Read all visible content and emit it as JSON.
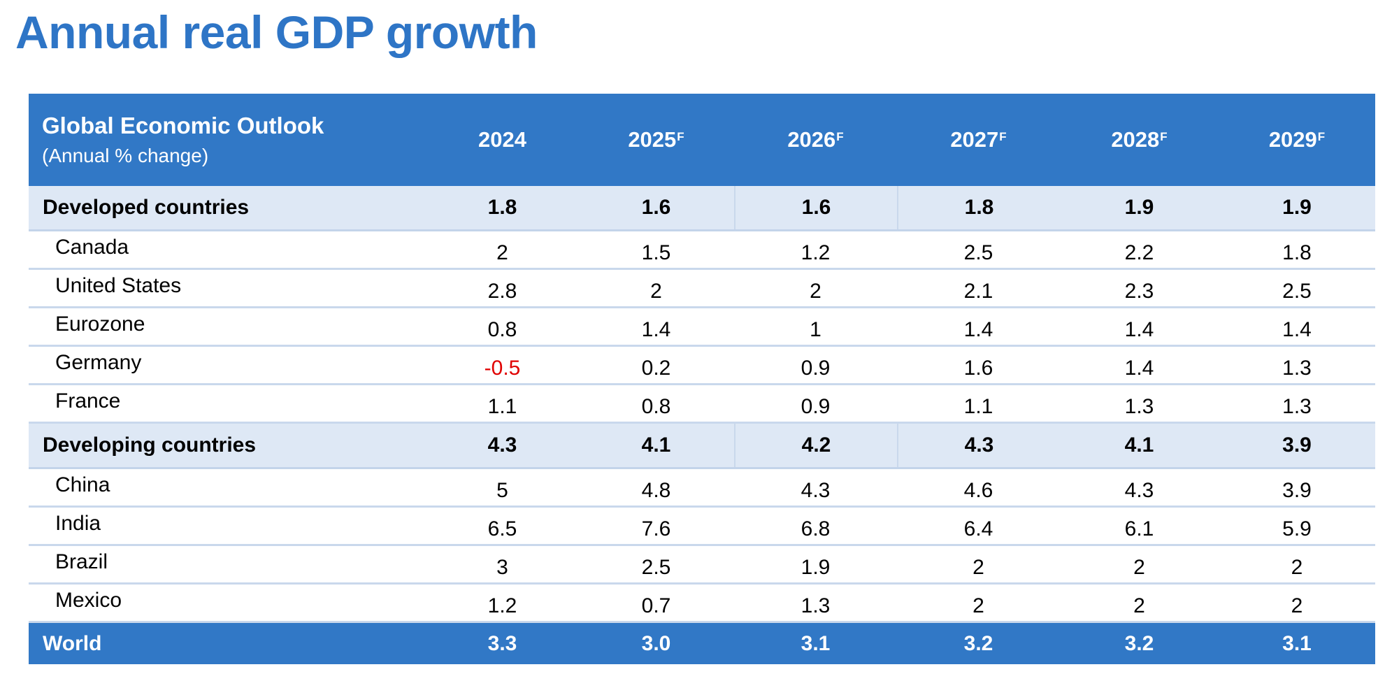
{
  "title": "Annual real GDP growth",
  "table": {
    "header": {
      "title": "Global Economic Outlook",
      "subtitle": "(Annual % change)",
      "years": [
        {
          "year": "2024",
          "mark": ""
        },
        {
          "year": "2025",
          "mark": "F"
        },
        {
          "year": "2026",
          "mark": "F"
        },
        {
          "year": "2027",
          "mark": "F"
        },
        {
          "year": "2028",
          "mark": "F"
        },
        {
          "year": "2029",
          "mark": "F"
        }
      ]
    },
    "rows": [
      {
        "type": "cat",
        "label": "Developed countries",
        "values": [
          "1.8",
          "1.6",
          "1.6",
          "1.8",
          "1.9",
          "1.9"
        ]
      },
      {
        "type": "sub",
        "label": "Canada",
        "values": [
          "2",
          "1.5",
          "1.2",
          "2.5",
          "2.2",
          "1.8"
        ]
      },
      {
        "type": "sub",
        "label": "United States",
        "values": [
          "2.8",
          "2",
          "2",
          "2.1",
          "2.3",
          "2.5"
        ]
      },
      {
        "type": "sub",
        "label": "Eurozone",
        "values": [
          "0.8",
          "1.4",
          "1",
          "1.4",
          "1.4",
          "1.4"
        ]
      },
      {
        "type": "sub",
        "label": "Germany",
        "values": [
          "-0.5",
          "0.2",
          "0.9",
          "1.6",
          "1.4",
          "1.3"
        ]
      },
      {
        "type": "sub",
        "label": "France",
        "values": [
          "1.1",
          "0.8",
          "0.9",
          "1.1",
          "1.3",
          "1.3"
        ]
      },
      {
        "type": "cat",
        "label": "Developing countries",
        "values": [
          "4.3",
          "4.1",
          "4.2",
          "4.3",
          "4.1",
          "3.9"
        ]
      },
      {
        "type": "sub",
        "label": "China",
        "values": [
          "5",
          "4.8",
          "4.3",
          "4.6",
          "4.3",
          "3.9"
        ]
      },
      {
        "type": "sub",
        "label": "India",
        "values": [
          "6.5",
          "7.6",
          "6.8",
          "6.4",
          "6.1",
          "5.9"
        ]
      },
      {
        "type": "sub",
        "label": "Brazil",
        "values": [
          "3",
          "2.5",
          "1.9",
          "2",
          "2",
          "2"
        ]
      },
      {
        "type": "sub",
        "label": "Mexico",
        "values": [
          "1.2",
          "0.7",
          "1.3",
          "2",
          "2",
          "2"
        ]
      },
      {
        "type": "world",
        "label": "World",
        "values": [
          "3.3",
          "3.0",
          "3.1",
          "3.2",
          "3.2",
          "3.1"
        ]
      }
    ]
  },
  "colors": {
    "header": "#3178C6",
    "title": "#2E75C6",
    "category_row": "#DEE8F5",
    "negative": "#E00000"
  }
}
